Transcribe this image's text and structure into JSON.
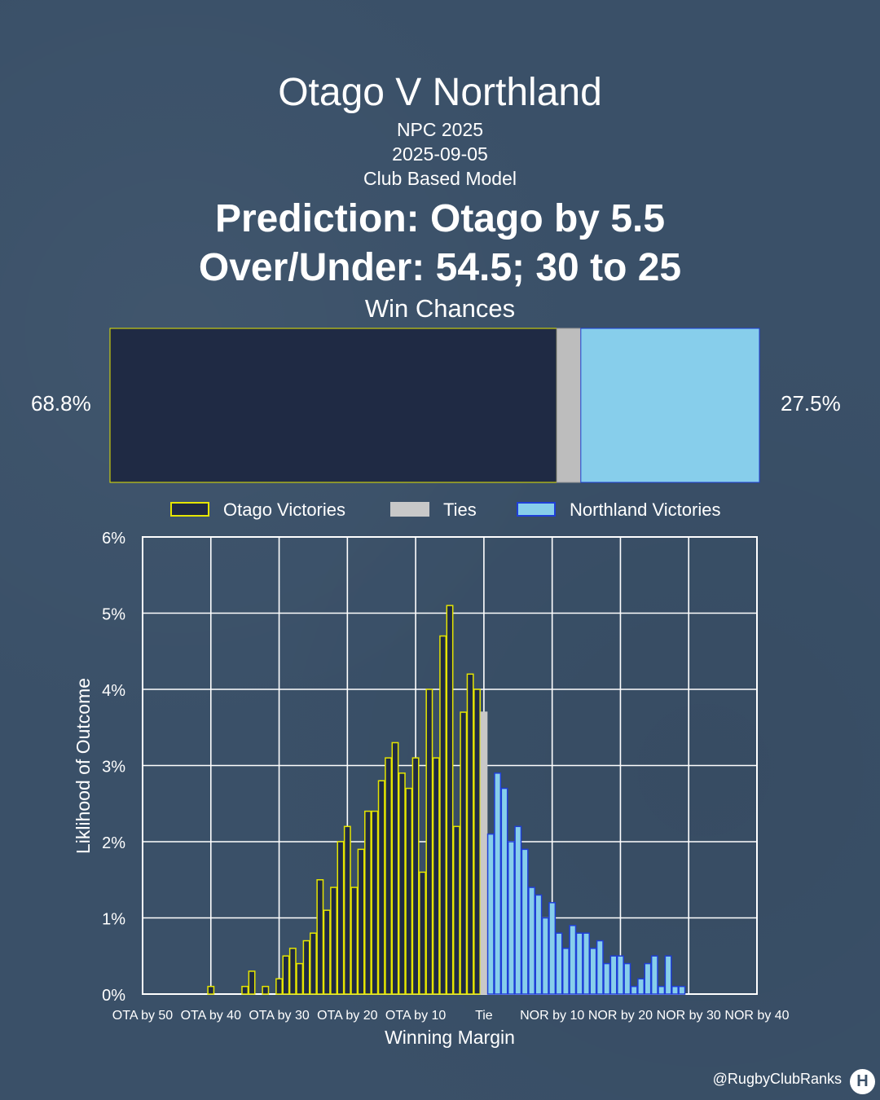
{
  "header": {
    "title": "Otago V Northland",
    "competition": "NPC 2025",
    "date": "2025-09-05",
    "model": "Club Based Model",
    "prediction": "Prediction: Otago by 5.5",
    "over_under": "Over/Under: 54.5; 30 to 25",
    "win_chances_title": "Win Chances"
  },
  "win_chances": {
    "otago_label": "68.8%",
    "northland_label": "27.5%",
    "otago": 68.8,
    "tie": 3.7,
    "northland": 27.5,
    "colors": {
      "otago": "#1f2a44",
      "otago_edge": "#e5e500",
      "tie": "#bdbdbd",
      "northland": "#87ceeb",
      "northland_edge": "#1f3fd6"
    }
  },
  "legend": {
    "items": [
      {
        "label": "Otago Victories",
        "color": "#1f2a44",
        "edge": "#e5e500"
      },
      {
        "label": "Ties",
        "color": "#c8c8c8",
        "edge": "#c8c8c8"
      },
      {
        "label": "Northland Victories",
        "color": "#87ceeb",
        "edge": "#1f3fd6"
      }
    ]
  },
  "chart_data": {
    "type": "bar",
    "xlabel": "Winning Margin",
    "ylabel": "Liklihood of Outcome",
    "ylim": [
      0,
      6
    ],
    "xlim": [
      -50,
      40
    ],
    "yticks": [
      "0%",
      "1%",
      "2%",
      "3%",
      "4%",
      "5%",
      "6%"
    ],
    "xtick_labels": [
      {
        "value": -50,
        "label": "OTA by 50"
      },
      {
        "value": -40,
        "label": "OTA by 40"
      },
      {
        "value": -30,
        "label": "OTA by 30"
      },
      {
        "value": -20,
        "label": "OTA by 20"
      },
      {
        "value": -10,
        "label": "OTA by 10"
      },
      {
        "value": 0,
        "label": "Tie"
      },
      {
        "value": 10,
        "label": "NOR by 10"
      },
      {
        "value": 20,
        "label": "NOR by 20"
      },
      {
        "value": 30,
        "label": "NOR by 30"
      },
      {
        "value": 40,
        "label": "NOR by 40"
      }
    ],
    "grid": true,
    "series": [
      {
        "name": "Otago Victories",
        "color": "#1f2a44",
        "edge": "#e5e500",
        "x": [
          -40,
          -35,
          -34,
          -32,
          -30,
          -29,
          -28,
          -27,
          -26,
          -25,
          -24,
          -23,
          -22,
          -21,
          -20,
          -19,
          -18,
          -17,
          -16,
          -15,
          -14,
          -13,
          -12,
          -11,
          -10,
          -9,
          -8,
          -7,
          -6,
          -5,
          -4,
          -3,
          -2,
          -1
        ],
        "values": [
          0.1,
          0.1,
          0.3,
          0.1,
          0.2,
          0.5,
          0.6,
          0.4,
          0.7,
          0.8,
          1.5,
          1.1,
          1.4,
          2.0,
          2.2,
          1.4,
          1.9,
          2.4,
          2.4,
          2.8,
          3.1,
          3.3,
          2.9,
          2.7,
          3.1,
          1.6,
          4.0,
          3.1,
          4.7,
          5.1,
          2.2,
          3.7,
          4.2,
          4.0
        ]
      },
      {
        "name": "Ties",
        "color": "#c8c8c8",
        "edge": "#c8c8c8",
        "x": [
          0
        ],
        "values": [
          3.7
        ]
      },
      {
        "name": "Northland Victories",
        "color": "#87ceeb",
        "edge": "#1f3fd6",
        "x": [
          1,
          2,
          3,
          4,
          5,
          6,
          7,
          8,
          9,
          10,
          11,
          12,
          13,
          14,
          15,
          16,
          17,
          18,
          19,
          20,
          21,
          22,
          23,
          24,
          25,
          26,
          27,
          28,
          29
        ],
        "values": [
          2.1,
          2.9,
          2.7,
          2.0,
          2.2,
          1.9,
          1.4,
          1.3,
          1.0,
          1.2,
          0.8,
          0.6,
          0.9,
          0.8,
          0.8,
          0.6,
          0.7,
          0.4,
          0.5,
          0.5,
          0.4,
          0.1,
          0.2,
          0.4,
          0.5,
          0.1,
          0.5,
          0.1,
          0.1
        ]
      }
    ]
  },
  "footer": {
    "handle": "@RugbyClubRanks",
    "logo_glyph": "H"
  }
}
